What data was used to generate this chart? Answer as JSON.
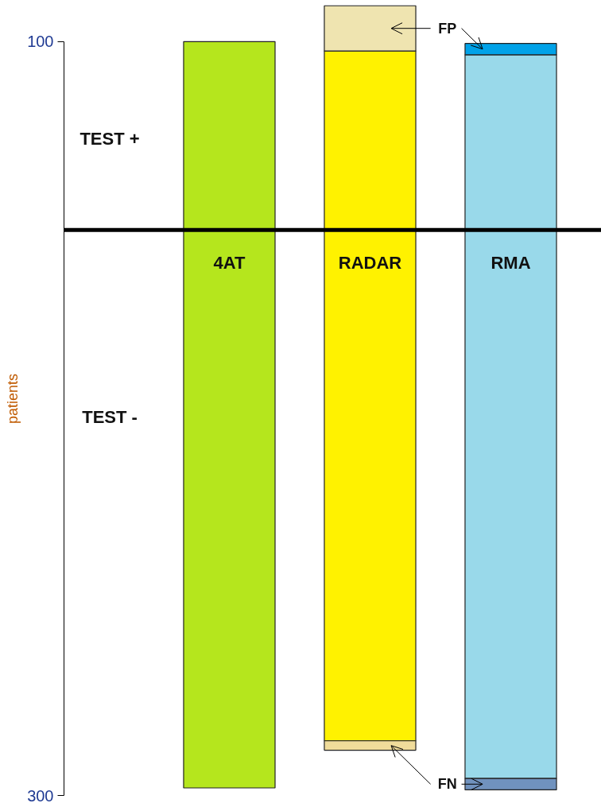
{
  "chart_data": {
    "type": "bar",
    "stacked": true,
    "ylabel": "patients",
    "categories": [
      "4AT",
      "RADAR",
      "RMA"
    ],
    "series": [
      {
        "colors": [
          "#b5e61d",
          "#fff200",
          "#99d9ea"
        ],
        "values": [
          100,
          95,
          93
        ]
      },
      {
        "colors": [
          "#efe4b0",
          "#efe4b0",
          "#00a2e8"
        ],
        "values": [
          null,
          24,
          6
        ]
      },
      {
        "colors": [
          "#b5e61d",
          "#fff200",
          "#99d9ea"
        ],
        "values": [
          -296,
          -271,
          -291
        ]
      },
      {
        "colors": [
          "#efe4b0",
          "#f0dc9a",
          "#7092be"
        ],
        "values": [
          null,
          -5,
          -6
        ]
      }
    ],
    "ylim": [
      -300,
      121
    ],
    "yticks": [
      {
        "value": 100,
        "label": "100"
      },
      {
        "value": -300,
        "label": "300"
      }
    ],
    "annotations": [
      "TEST +",
      "TEST -",
      "FP",
      "FN"
    ]
  }
}
